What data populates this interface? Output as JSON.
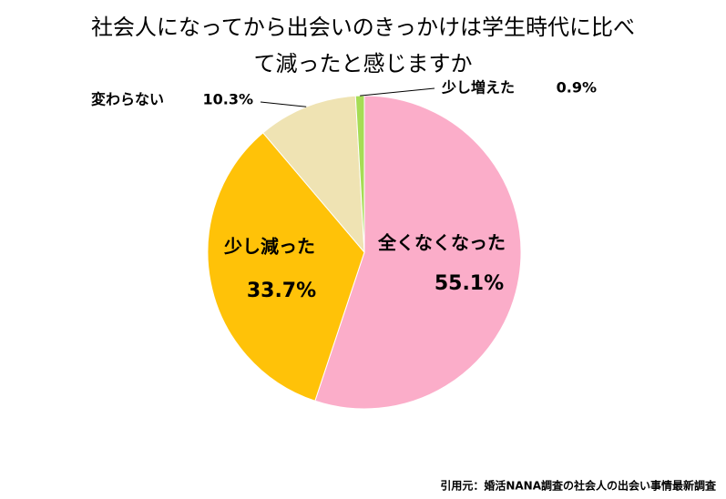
{
  "chart_data": {
    "type": "pie",
    "title": "社会人になってから出会いのきっかけは学生時代に比べて減ったと感じますか",
    "categories": [
      "全くなくなった",
      "少し減った",
      "変わらない",
      "少し増えた"
    ],
    "values": [
      55.1,
      33.7,
      10.3,
      0.9
    ],
    "value_labels": [
      "55.1%",
      "33.7%",
      "10.3%",
      "0.9%"
    ],
    "colors": [
      "#fbadc9",
      "#ffc208",
      "#efe3b3",
      "#a6dc55"
    ],
    "source": "引用元：婚活NANA調査の社会人の出会い事情最新調査"
  }
}
